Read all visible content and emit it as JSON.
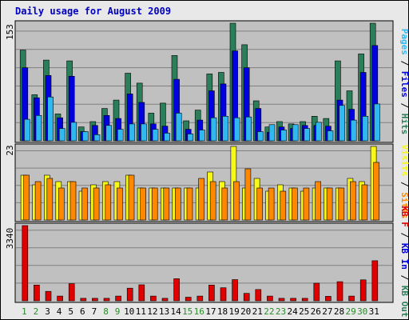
{
  "colors": {
    "outer_bg": "#E8E8E8",
    "panel_bg": "#C0C0C0",
    "gridline": "#808080",
    "title": "#0000C0",
    "hits": "#2A7F5A",
    "files": "#0000E0",
    "pages": "#30B8F0",
    "visits": "#F8F818",
    "sites": "#FF8800",
    "kbf": "#E00000",
    "kbin": "#0000E0",
    "kbout": "#2A7F5A",
    "day_weekday": "#000000",
    "day_weekend": "#2A8A2A"
  },
  "chart_data": {
    "type": "bar",
    "title": "Daily usage for August 2009",
    "days": [
      "1",
      "2",
      "3",
      "4",
      "5",
      "6",
      "7",
      "8",
      "9",
      "10",
      "11",
      "12",
      "13",
      "14",
      "15",
      "16",
      "17",
      "18",
      "19",
      "20",
      "21",
      "22",
      "23",
      "24",
      "25",
      "26",
      "27",
      "28",
      "29",
      "30",
      "31"
    ],
    "weekend_days": [
      1,
      2,
      8,
      9,
      15,
      16,
      22,
      23,
      29,
      30
    ],
    "panels": [
      {
        "id": "top",
        "ymax_label": "153",
        "ylim": [
          0,
          153
        ],
        "legend": [
          {
            "text": "Pages",
            "color": "#30B8F0"
          },
          {
            "text": " / ",
            "color": "#000000"
          },
          {
            "text": "Files",
            "color": "#0000E0"
          },
          {
            "text": " / ",
            "color": "#000000"
          },
          {
            "text": "Hits",
            "color": "#2A7F5A"
          }
        ],
        "series": [
          {
            "name": "Hits",
            "color": "#2A7F5A",
            "values": [
              118,
              60,
              105,
              35,
              104,
              18,
              25,
              42,
              53,
              88,
              75,
              36,
              49,
              111,
              26,
              40,
              87,
              89,
              153,
              125,
              52,
              18,
              25,
              22,
              25,
              32,
              29,
              104,
              65,
              113,
              153
            ]
          },
          {
            "name": "Files",
            "color": "#0000E0",
            "values": [
              95,
              56,
              85,
              30,
              84,
              12,
              20,
              33,
              29,
              61,
              50,
              22,
              19,
              80,
              15,
              27,
              65,
              74,
              117,
              95,
              42,
              11,
              18,
              16,
              20,
              20,
              19,
              53,
              41,
              89,
              124
            ]
          },
          {
            "name": "Pages",
            "color": "#30B8F0",
            "values": [
              28,
              33,
              57,
              16,
              24,
              12,
              8,
              20,
              15,
              22,
              22,
              15,
              10,
              36,
              9,
              14,
              30,
              32,
              30,
              31,
              12,
              21,
              14,
              21,
              16,
              24,
              13,
              46,
              27,
              32,
              48
            ]
          }
        ]
      },
      {
        "id": "mid",
        "ymax_label": "23",
        "ylim": [
          0,
          23
        ],
        "legend": [
          {
            "text": "Visits",
            "color": "#F8F818"
          },
          {
            "text": " / ",
            "color": "#000000"
          },
          {
            "text": "Sites",
            "color": "#FF8800"
          }
        ],
        "series": [
          {
            "name": "Visits",
            "color": "#F8F818",
            "values": [
              14,
              11,
              14,
              12,
              12,
              9,
              11,
              12,
              12,
              14,
              10,
              10,
              10,
              10,
              10,
              10,
              15,
              12,
              23,
              10,
              13,
              9,
              11,
              10,
              9,
              10,
              10,
              10,
              13,
              12,
              23
            ]
          },
          {
            "name": "Sites",
            "color": "#FF8800",
            "values": [
              14,
              12,
              13,
              10,
              12,
              10,
              10,
              11,
              10,
              14,
              10,
              10,
              10,
              10,
              10,
              13,
              12,
              10,
              12,
              16,
              10,
              10,
              9,
              10,
              10,
              12,
              10,
              10,
              12,
              11,
              18
            ]
          }
        ]
      },
      {
        "id": "bot",
        "ymax_label": "3340",
        "ylim": [
          0,
          3340
        ],
        "legend": [
          {
            "text": "KB F",
            "color": "#E00000"
          },
          {
            "text": " / ",
            "color": "#000000"
          },
          {
            "text": "KB In",
            "color": "#0000E0"
          },
          {
            "text": " / ",
            "color": "#000000"
          },
          {
            "text": "KB Out",
            "color": "#2A7F5A"
          }
        ],
        "series": [
          {
            "name": "KB F",
            "color": "#E00000",
            "values": [
              3340,
              700,
              420,
              210,
              760,
              110,
              110,
              110,
              210,
              560,
              710,
              210,
              110,
              980,
              160,
              210,
              700,
              580,
              940,
              330,
              500,
              210,
              110,
              110,
              110,
              780,
              200,
              850,
              210,
              930,
              1780
            ]
          }
        ]
      }
    ]
  }
}
